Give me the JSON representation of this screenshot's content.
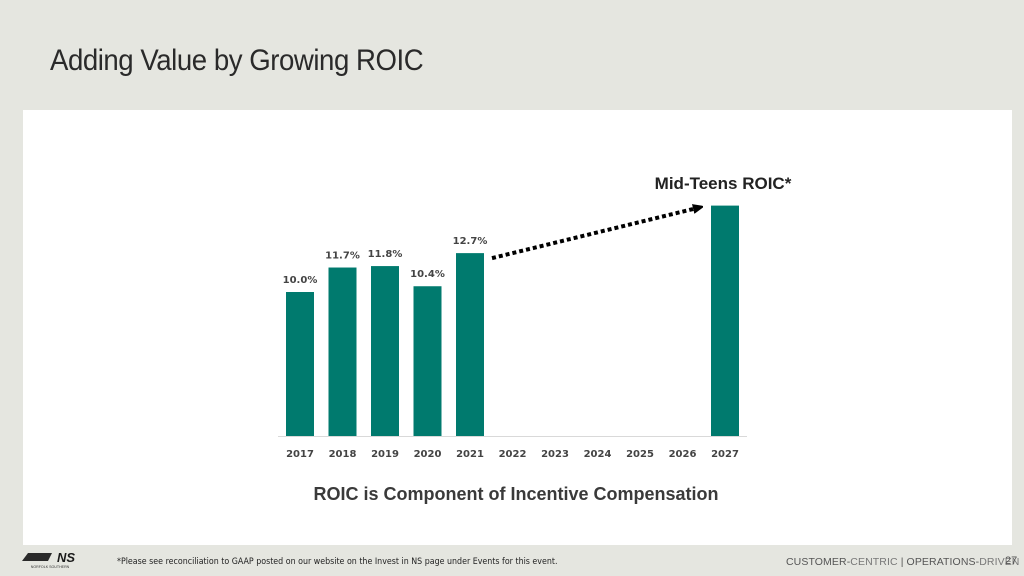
{
  "slide": {
    "title": "Adding Value by Growing ROIC",
    "footnote": "*Please see reconciliation to GAAP posted on our website on the Invest in NS page under Events for this event.",
    "tagline_part1": "CUSTOMER-",
    "tagline_part2": "CENTRIC",
    "tagline_sep": " | ",
    "tagline_part3": "OPERATIONS-",
    "tagline_part4": "DRIVEN",
    "page_number": "27",
    "logo_text": "NS",
    "logo_subtext": "NORFOLK SOUTHERN"
  },
  "chart_data": {
    "type": "bar",
    "title": "",
    "subtitle": "ROIC is Component of Incentive Compensation",
    "categories": [
      "2017",
      "2018",
      "2019",
      "2020",
      "2021",
      "2022",
      "2023",
      "2024",
      "2025",
      "2026",
      "2027"
    ],
    "values": [
      10.0,
      11.7,
      11.8,
      10.4,
      12.7,
      null,
      null,
      null,
      null,
      null,
      16.0
    ],
    "data_labels": [
      "10.0%",
      "11.7%",
      "11.8%",
      "10.4%",
      "12.7%",
      "",
      "",
      "",
      "",
      "",
      ""
    ],
    "annotation": "Mid-Teens ROIC*",
    "annotation_target": "2027",
    "arrow_from": "2021",
    "arrow_to": "2027",
    "xlabel": "",
    "ylabel": "",
    "ylim": [
      0,
      16
    ],
    "grid": false,
    "bar_color": "#007a6e",
    "axis_color": "#d9d9d9"
  }
}
